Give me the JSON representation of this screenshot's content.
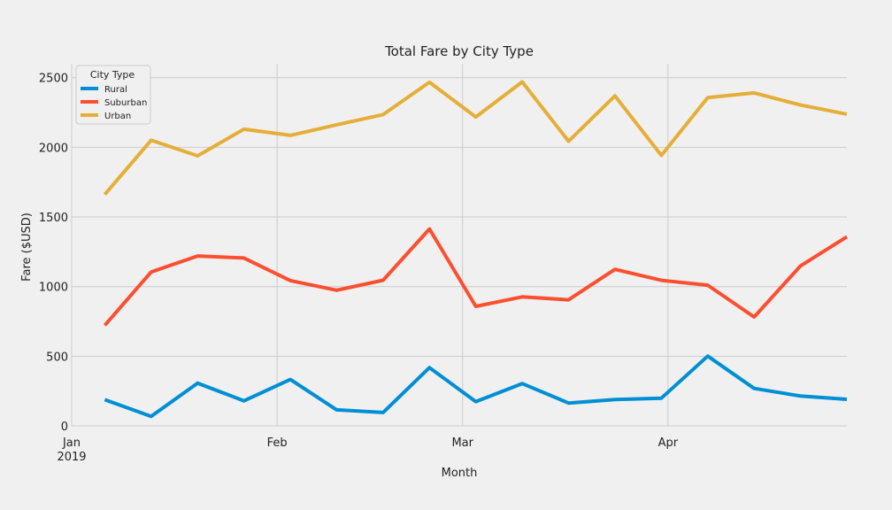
{
  "chart_data": {
    "type": "line",
    "title": "Total Fare by City Type",
    "xlabel": "Month",
    "ylabel": "Fare ($USD)",
    "x": [
      "2019-01-06",
      "2019-01-13",
      "2019-01-20",
      "2019-01-27",
      "2019-02-03",
      "2019-02-10",
      "2019-02-17",
      "2019-02-24",
      "2019-03-03",
      "2019-03-10",
      "2019-03-17",
      "2019-03-24",
      "2019-03-31",
      "2019-04-07",
      "2019-04-14",
      "2019-04-21",
      "2019-04-28"
    ],
    "xlim": [
      "2019-01-01",
      "2019-04-28"
    ],
    "ylim": [
      0,
      2600
    ],
    "x_ticks": [
      {
        "value": "2019-01-01",
        "label": "Jan",
        "sublabel": "2019"
      },
      {
        "value": "2019-02-01",
        "label": "Feb",
        "sublabel": ""
      },
      {
        "value": "2019-03-01",
        "label": "Mar",
        "sublabel": ""
      },
      {
        "value": "2019-04-01",
        "label": "Apr",
        "sublabel": ""
      }
    ],
    "y_ticks": [
      0,
      500,
      1000,
      1500,
      2000,
      2500
    ],
    "legend_title": "City Type",
    "legend_position": "top-left",
    "grid": true,
    "series": [
      {
        "name": "Rural",
        "color": "#008fd5",
        "values": [
          188,
          68,
          307,
          180,
          333,
          115,
          96,
          418,
          174,
          304,
          164,
          189,
          199,
          501,
          269,
          214,
          191
        ]
      },
      {
        "name": "Suburban",
        "color": "#fc4f30",
        "values": [
          722,
          1105,
          1220,
          1205,
          1043,
          974,
          1046,
          1414,
          858,
          926,
          905,
          1124,
          1045,
          1010,
          782,
          1149,
          1358
        ]
      },
      {
        "name": "Urban",
        "color": "#e5ae38",
        "values": [
          1661,
          2051,
          1939,
          2130,
          2086,
          2162,
          2235,
          2467,
          2218,
          2470,
          2044,
          2369,
          1942,
          2357,
          2391,
          2304,
          2238
        ]
      }
    ]
  }
}
